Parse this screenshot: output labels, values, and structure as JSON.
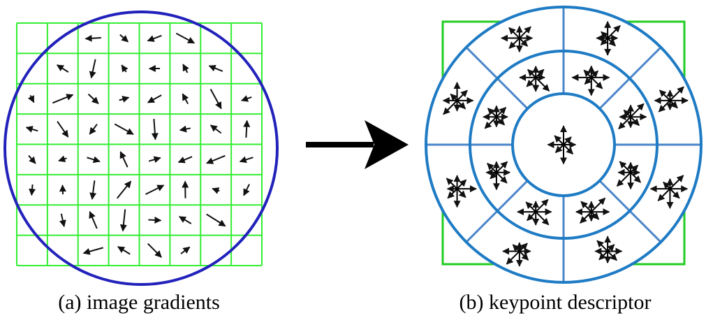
{
  "panel_a": {
    "caption": "(a) image gradients",
    "grid_color": "#33ee33",
    "circle_color": "#2222bb",
    "arrow_color": "#111111"
  },
  "arrow_between": {
    "color": "#000000"
  },
  "panel_b": {
    "caption": "(b) keypoint descriptor",
    "square_color": "#22cc22",
    "ring_color": "#1e7bc4",
    "spoke_color": "#4a86c8",
    "star_color": "#000000"
  }
}
